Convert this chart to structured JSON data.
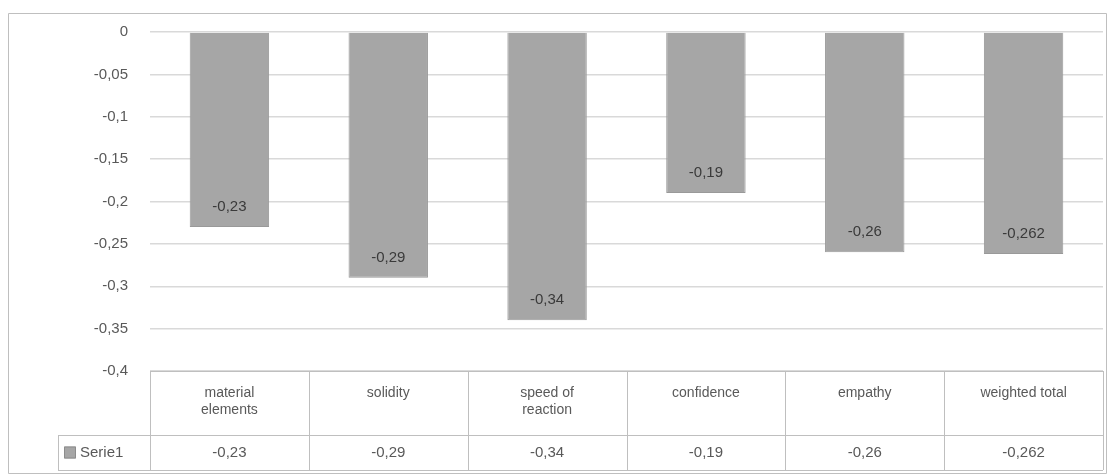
{
  "chart_data": {
    "type": "bar",
    "categories": [
      "material elements",
      "solidity",
      "speed of reaction",
      "confidence",
      "empathy",
      "weighted total"
    ],
    "series": [
      {
        "name": "Serie1",
        "color": "#a6a6a6",
        "values": [
          -0.23,
          -0.29,
          -0.34,
          -0.19,
          -0.26,
          -0.262
        ],
        "value_labels": [
          "-0,23",
          "-0,29",
          "-0,34",
          "-0,19",
          "-0,26",
          "-0,262"
        ]
      }
    ],
    "ylim": [
      -0.4,
      0
    ],
    "yticks": [
      0,
      {
        "value": -0.05,
        "label": "-0,05"
      },
      {
        "value": -0.1,
        "label": "-0,1"
      },
      {
        "value": -0.15,
        "label": "-0,15"
      },
      {
        "value": -0.2,
        "label": "-0,2"
      },
      {
        "value": -0.25,
        "label": "-0,25"
      },
      {
        "value": -0.3,
        "label": "-0,3"
      },
      {
        "value": -0.35,
        "label": "-0,35"
      },
      {
        "value": -0.4,
        "label": "-0,4"
      }
    ],
    "grid": "y",
    "legend": "bottom"
  }
}
